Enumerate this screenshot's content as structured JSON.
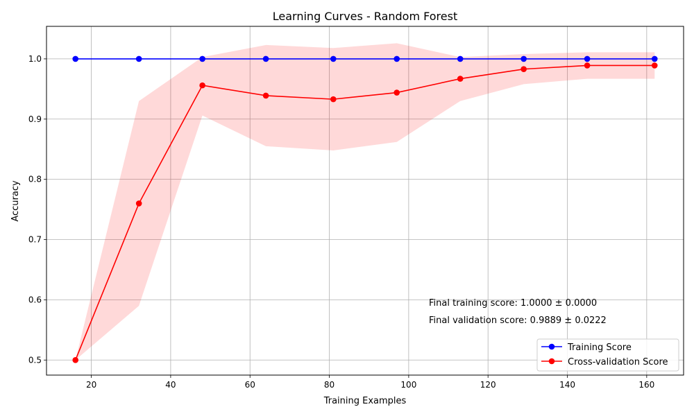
{
  "chart_data": {
    "type": "line",
    "title": "Learning Curves - Random Forest",
    "xlabel": "Training Examples",
    "ylabel": "Accuracy",
    "xlim": [
      8.7,
      169.3
    ],
    "ylim": [
      0.475,
      1.054
    ],
    "xticks": [
      20,
      40,
      60,
      80,
      100,
      120,
      140,
      160
    ],
    "yticks": [
      0.5,
      0.6,
      0.7,
      0.8,
      0.9,
      1.0
    ],
    "grid": true,
    "legend_position": "lower right",
    "x": [
      16,
      32,
      48,
      64,
      81,
      97,
      113,
      129,
      145,
      162
    ],
    "series": [
      {
        "name": "Training Score",
        "color": "#0000ff",
        "values": [
          1.0,
          1.0,
          1.0,
          1.0,
          1.0,
          1.0,
          1.0,
          1.0,
          1.0,
          1.0
        ],
        "band_lower": [
          1.0,
          1.0,
          1.0,
          1.0,
          1.0,
          1.0,
          1.0,
          1.0,
          1.0,
          1.0
        ],
        "band_upper": [
          1.0,
          1.0,
          1.0,
          1.0,
          1.0,
          1.0,
          1.0,
          1.0,
          1.0,
          1.0
        ]
      },
      {
        "name": "Cross-validation Score",
        "color": "#ff0000",
        "values": [
          0.5,
          0.76,
          0.956,
          0.939,
          0.933,
          0.944,
          0.967,
          0.983,
          0.989,
          0.989
        ],
        "band_lower": [
          0.5,
          0.59,
          0.906,
          0.855,
          0.848,
          0.862,
          0.93,
          0.958,
          0.967,
          0.967
        ],
        "band_upper": [
          0.5,
          0.93,
          1.003,
          1.023,
          1.018,
          1.026,
          1.003,
          1.008,
          1.011,
          1.011
        ]
      }
    ],
    "annotations": [
      "Final training score: 1.0000 ± 0.0000",
      "Final validation score: 0.9889 ± 0.0222"
    ]
  }
}
